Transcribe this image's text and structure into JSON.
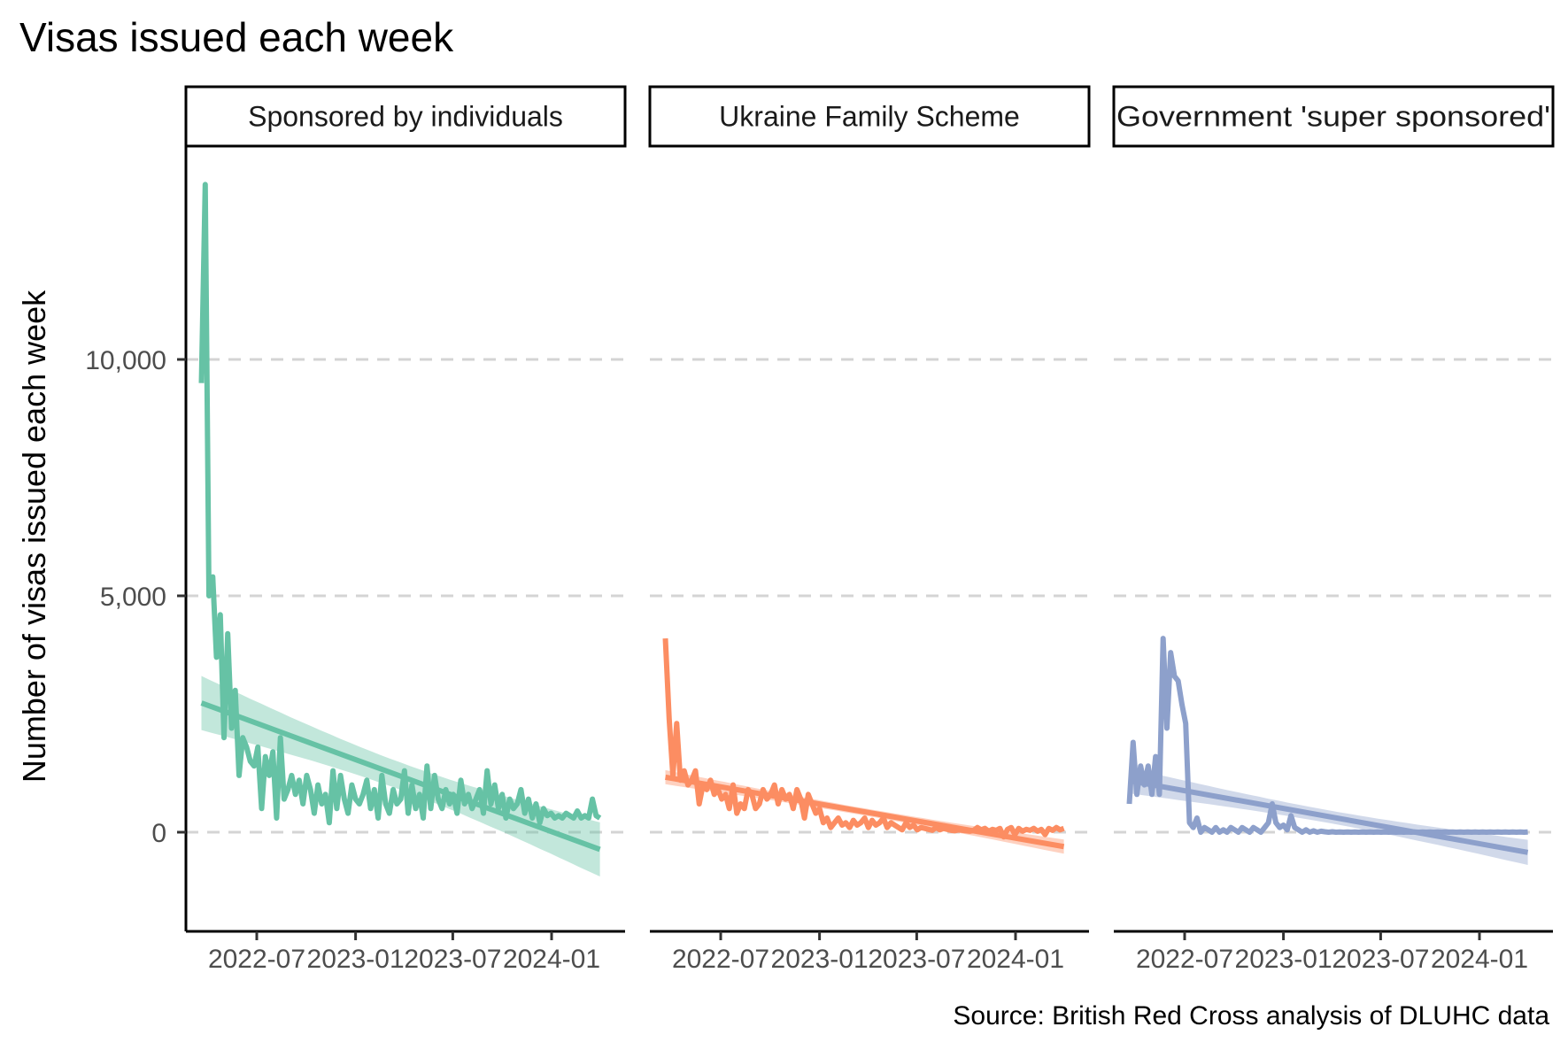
{
  "chart_data": {
    "type": "line",
    "title": "Visas issued each week",
    "ylabel": "Number of visas issued each week",
    "xlabel": "",
    "caption": "Source: British Red Cross analysis of DLUHC data",
    "ylim": [
      -2100,
      14300
    ],
    "xlim": [
      "2022-03-02",
      "2024-04-16"
    ],
    "y_ticks": [
      0,
      5000,
      10000
    ],
    "y_tick_labels": [
      "0",
      "5,000",
      "10,000"
    ],
    "x_ticks": [
      "2022-07-01",
      "2023-01-01",
      "2023-07-01",
      "2024-01-01"
    ],
    "x_tick_labels": [
      "2022-07",
      "2023-01",
      "2023-07",
      "2024-01"
    ],
    "grid": "major horizontal, dashed",
    "facets": [
      {
        "label": "Sponsored by individuals",
        "color": "#66c2a5",
        "x": [
          "2022-03-20",
          "2022-03-27",
          "2022-04-03",
          "2022-04-10",
          "2022-04-17",
          "2022-04-24",
          "2022-05-01",
          "2022-05-08",
          "2022-05-15",
          "2022-05-22",
          "2022-05-29",
          "2022-06-05",
          "2022-06-12",
          "2022-06-19",
          "2022-06-26",
          "2022-07-03",
          "2022-07-10",
          "2022-07-17",
          "2022-07-24",
          "2022-07-31",
          "2022-08-07",
          "2022-08-14",
          "2022-08-21",
          "2022-08-28",
          "2022-09-04",
          "2022-09-11",
          "2022-09-18",
          "2022-09-25",
          "2022-10-02",
          "2022-10-09",
          "2022-10-16",
          "2022-10-23",
          "2022-10-30",
          "2022-11-06",
          "2022-11-13",
          "2022-11-20",
          "2022-11-27",
          "2022-12-04",
          "2022-12-11",
          "2022-12-18",
          "2022-12-25",
          "2023-01-01",
          "2023-01-08",
          "2023-01-15",
          "2023-01-22",
          "2023-01-29",
          "2023-02-05",
          "2023-02-12",
          "2023-02-19",
          "2023-02-26",
          "2023-03-05",
          "2023-03-12",
          "2023-03-19",
          "2023-03-26",
          "2023-04-02",
          "2023-04-09",
          "2023-04-16",
          "2023-04-23",
          "2023-04-30",
          "2023-05-07",
          "2023-05-14",
          "2023-05-21",
          "2023-05-28",
          "2023-06-04",
          "2023-06-11",
          "2023-06-18",
          "2023-06-25",
          "2023-07-02",
          "2023-07-09",
          "2023-07-16",
          "2023-07-23",
          "2023-07-30",
          "2023-08-06",
          "2023-08-13",
          "2023-08-20",
          "2023-08-27",
          "2023-09-03",
          "2023-09-10",
          "2023-09-17",
          "2023-09-24",
          "2023-10-01",
          "2023-10-08",
          "2023-10-15",
          "2023-10-22",
          "2023-10-29",
          "2023-11-05",
          "2023-11-12",
          "2023-11-19",
          "2023-11-26",
          "2023-12-03",
          "2023-12-10",
          "2023-12-17",
          "2023-12-24",
          "2023-12-31",
          "2024-01-07",
          "2024-01-14",
          "2024-01-21",
          "2024-01-28",
          "2024-02-04",
          "2024-02-11",
          "2024-02-18",
          "2024-02-25",
          "2024-03-03",
          "2024-03-10",
          "2024-03-17",
          "2024-03-24",
          "2024-03-31"
        ],
        "y": [
          9500,
          13700,
          5000,
          5400,
          3700,
          4600,
          2000,
          4200,
          2200,
          3000,
          1200,
          2000,
          1800,
          1500,
          1400,
          1800,
          500,
          1600,
          1200,
          1700,
          300,
          2000,
          700,
          900,
          1200,
          800,
          1100,
          600,
          1200,
          900,
          400,
          1000,
          600,
          800,
          200,
          1300,
          500,
          1200,
          700,
          400,
          1000,
          700,
          600,
          800,
          1100,
          500,
          900,
          300,
          1200,
          600,
          400,
          900,
          600,
          700,
          1300,
          400,
          1000,
          500,
          800,
          300,
          1400,
          500,
          1200,
          700,
          500,
          900,
          600,
          800,
          400,
          1100,
          600,
          800,
          500,
          700,
          900,
          400,
          1300,
          600,
          1000,
          500,
          800,
          300,
          700,
          500,
          600,
          900,
          400,
          700,
          300,
          600,
          200,
          500,
          350,
          400,
          300,
          350,
          300,
          400,
          350,
          300,
          450,
          300,
          350,
          300,
          700,
          350,
          300
        ]
      },
      {
        "label": "Ukraine Family Scheme",
        "color": "#fc8d62",
        "x": [
          "2022-03-20",
          "2022-03-27",
          "2022-04-03",
          "2022-04-10",
          "2022-04-17",
          "2022-04-24",
          "2022-05-01",
          "2022-05-08",
          "2022-05-15",
          "2022-05-22",
          "2022-05-29",
          "2022-06-05",
          "2022-06-12",
          "2022-06-19",
          "2022-06-26",
          "2022-07-03",
          "2022-07-10",
          "2022-07-17",
          "2022-07-24",
          "2022-07-31",
          "2022-08-07",
          "2022-08-14",
          "2022-08-21",
          "2022-08-28",
          "2022-09-04",
          "2022-09-11",
          "2022-09-18",
          "2022-09-25",
          "2022-10-02",
          "2022-10-09",
          "2022-10-16",
          "2022-10-23",
          "2022-10-30",
          "2022-11-06",
          "2022-11-13",
          "2022-11-20",
          "2022-11-27",
          "2022-12-04",
          "2022-12-11",
          "2022-12-18",
          "2022-12-25",
          "2023-01-01",
          "2023-01-08",
          "2023-01-15",
          "2023-01-22",
          "2023-01-29",
          "2023-02-05",
          "2023-02-12",
          "2023-02-19",
          "2023-02-26",
          "2023-03-05",
          "2023-03-12",
          "2023-03-19",
          "2023-03-26",
          "2023-04-02",
          "2023-04-09",
          "2023-04-16",
          "2023-04-23",
          "2023-04-30",
          "2023-05-07",
          "2023-05-14",
          "2023-05-21",
          "2023-05-28",
          "2023-06-04",
          "2023-06-11",
          "2023-06-18",
          "2023-06-25",
          "2023-07-02",
          "2023-07-09",
          "2023-07-16",
          "2023-07-23",
          "2023-07-30",
          "2023-08-06",
          "2023-08-13",
          "2023-08-20",
          "2023-08-27",
          "2023-09-03",
          "2023-09-10",
          "2023-09-17",
          "2023-09-24",
          "2023-10-01",
          "2023-10-08",
          "2023-10-15",
          "2023-10-22",
          "2023-10-29",
          "2023-11-05",
          "2023-11-12",
          "2023-11-19",
          "2023-11-26",
          "2023-12-03",
          "2023-12-10",
          "2023-12-17",
          "2023-12-24",
          "2023-12-31",
          "2024-01-07",
          "2024-01-14",
          "2024-01-21",
          "2024-01-28",
          "2024-02-04",
          "2024-02-11",
          "2024-02-18",
          "2024-02-25",
          "2024-03-03",
          "2024-03-10",
          "2024-03-17",
          "2024-03-24",
          "2024-03-31"
        ],
        "y": [
          4100,
          2400,
          1200,
          2300,
          1100,
          1300,
          1000,
          1100,
          1300,
          600,
          1000,
          900,
          1100,
          800,
          900,
          700,
          800,
          500,
          1000,
          400,
          600,
          500,
          900,
          800,
          500,
          600,
          900,
          700,
          800,
          1000,
          600,
          900,
          700,
          800,
          500,
          900,
          700,
          300,
          800,
          600,
          400,
          500,
          200,
          300,
          100,
          200,
          300,
          150,
          200,
          100,
          250,
          150,
          200,
          300,
          100,
          250,
          150,
          200,
          300,
          100,
          200,
          150,
          100,
          50,
          200,
          100,
          150,
          50,
          100,
          80,
          60,
          40,
          100,
          50,
          80,
          60,
          40,
          30,
          50,
          40,
          30,
          20,
          40,
          100,
          50,
          80,
          20,
          60,
          40,
          80,
          -100,
          60,
          100,
          -50,
          80,
          20,
          60,
          40,
          80,
          20,
          60,
          -50,
          80,
          40,
          100,
          50,
          80
        ]
      },
      {
        "label": "Government 'super sponsored'",
        "color": "#8da0cb",
        "x": [
          "2022-03-20",
          "2022-03-27",
          "2022-04-03",
          "2022-04-10",
          "2022-04-17",
          "2022-04-24",
          "2022-05-01",
          "2022-05-08",
          "2022-05-15",
          "2022-05-22",
          "2022-05-29",
          "2022-06-05",
          "2022-06-12",
          "2022-06-19",
          "2022-06-26",
          "2022-07-03",
          "2022-07-10",
          "2022-07-17",
          "2022-07-24",
          "2022-07-31",
          "2022-08-07",
          "2022-08-14",
          "2022-08-21",
          "2022-08-28",
          "2022-09-04",
          "2022-09-11",
          "2022-09-18",
          "2022-09-25",
          "2022-10-02",
          "2022-10-09",
          "2022-10-16",
          "2022-10-23",
          "2022-10-30",
          "2022-11-06",
          "2022-11-13",
          "2022-11-20",
          "2022-11-27",
          "2022-12-04",
          "2022-12-11",
          "2022-12-18",
          "2022-12-25",
          "2023-01-01",
          "2023-01-08",
          "2023-01-15",
          "2023-01-22",
          "2023-01-29",
          "2023-02-05",
          "2023-02-12",
          "2023-02-19",
          "2023-02-26",
          "2023-03-05",
          "2023-03-12",
          "2023-03-19",
          "2023-03-26",
          "2023-04-02",
          "2023-04-09",
          "2023-04-16",
          "2023-04-23",
          "2023-04-30",
          "2023-05-07",
          "2023-05-14",
          "2023-05-21",
          "2023-05-28",
          "2023-06-04",
          "2023-06-11",
          "2023-06-18",
          "2023-06-25",
          "2023-07-02",
          "2023-07-09",
          "2023-07-16",
          "2023-07-23",
          "2023-07-30",
          "2023-08-06",
          "2023-08-13",
          "2023-08-20",
          "2023-08-27",
          "2023-09-03",
          "2023-09-10",
          "2023-09-17",
          "2023-09-24",
          "2023-10-01",
          "2023-10-08",
          "2023-10-15",
          "2023-10-22",
          "2023-10-29",
          "2023-11-05",
          "2023-11-12",
          "2023-11-19",
          "2023-11-26",
          "2023-12-03",
          "2023-12-10",
          "2023-12-17",
          "2023-12-24",
          "2023-12-31",
          "2024-01-07",
          "2024-01-14",
          "2024-01-21",
          "2024-01-28",
          "2024-02-04",
          "2024-02-11",
          "2024-02-18",
          "2024-02-25",
          "2024-03-03",
          "2024-03-10",
          "2024-03-17",
          "2024-03-24",
          "2024-03-31"
        ],
        "y": [
          600,
          1900,
          800,
          1400,
          1000,
          1400,
          800,
          1600,
          800,
          4100,
          2200,
          3800,
          3300,
          3200,
          2700,
          2300,
          200,
          100,
          300,
          0,
          100,
          50,
          0,
          100,
          0,
          50,
          0,
          100,
          50,
          0,
          100,
          50,
          0,
          100,
          50,
          0,
          100,
          200,
          600,
          200,
          100,
          150,
          50,
          350,
          100,
          50,
          0,
          50,
          0,
          30,
          0,
          20,
          10,
          0,
          10,
          0,
          5,
          0,
          5,
          0,
          5,
          0,
          5,
          0,
          5,
          0,
          5,
          0,
          5,
          0,
          5,
          0,
          5,
          0,
          5,
          0,
          5,
          0,
          5,
          0,
          5,
          0,
          5,
          0,
          5,
          0,
          5,
          0,
          5,
          0,
          5,
          0,
          5,
          0,
          5,
          0,
          5,
          0,
          5,
          0,
          5,
          0,
          5,
          0,
          5,
          0,
          5
        ]
      }
    ]
  }
}
